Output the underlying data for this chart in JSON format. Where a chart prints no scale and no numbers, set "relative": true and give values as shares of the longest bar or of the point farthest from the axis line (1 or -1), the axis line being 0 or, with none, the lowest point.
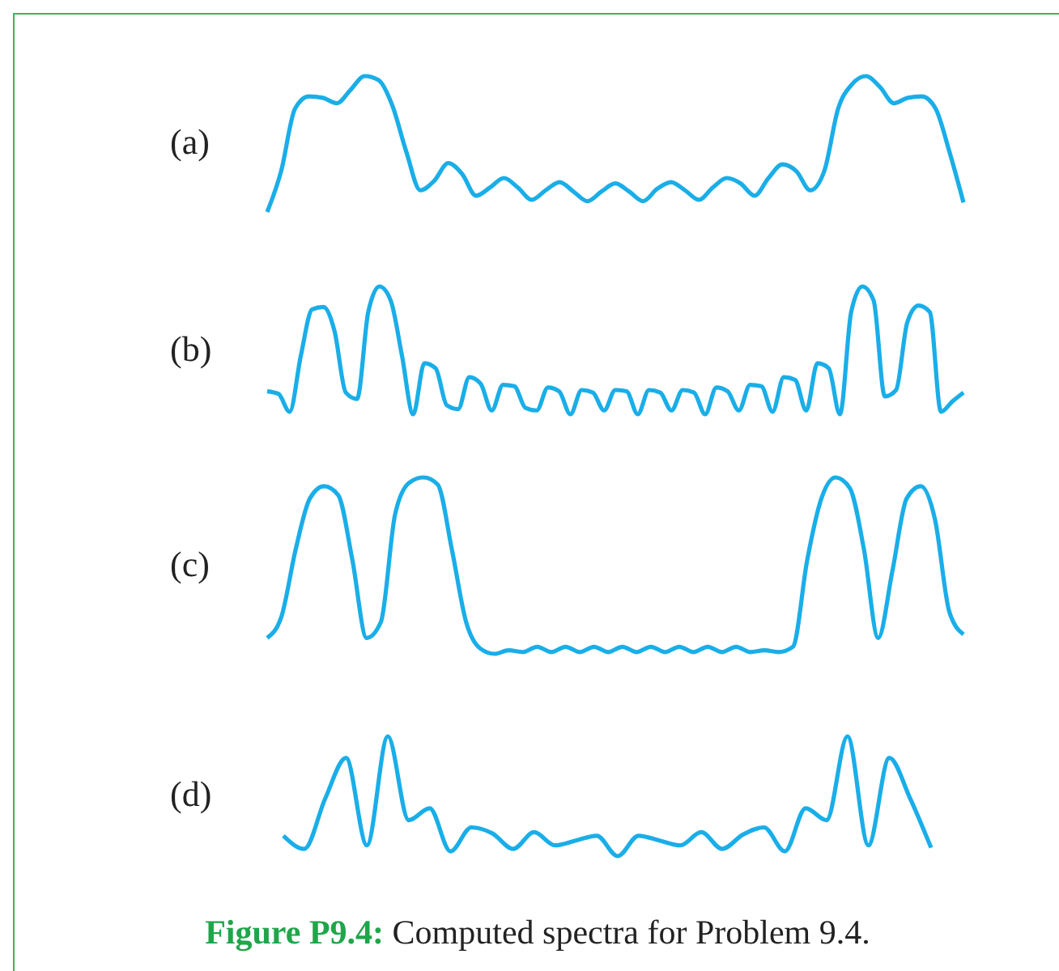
{
  "chart_data": [
    {
      "type": "line",
      "title": "(a)",
      "relative": true,
      "color": "#1aaee8",
      "categories": [
        null,
        null,
        null,
        null,
        null,
        null,
        null,
        null,
        null,
        null,
        null,
        null,
        null,
        null,
        null,
        null,
        null,
        null,
        null,
        null,
        null,
        null,
        null,
        null,
        null,
        null,
        null,
        null,
        null,
        null,
        null,
        null,
        null,
        null,
        null,
        null,
        null,
        null,
        null,
        null,
        null,
        null,
        null,
        null,
        null,
        null,
        null,
        null,
        null,
        null,
        null
      ],
      "values": [
        0,
        0.3,
        0.76,
        0.85,
        0.84,
        0.8,
        0.9,
        1,
        0.97,
        0.78,
        0.44,
        0.16,
        0.23,
        0.36,
        0.28,
        0.12,
        0.18,
        0.25,
        0.18,
        0.09,
        0.16,
        0.22,
        0.15,
        0.08,
        0.15,
        0.21,
        0.15,
        0.08,
        0.17,
        0.22,
        0.16,
        0.09,
        0.18,
        0.25,
        0.21,
        0.12,
        0.25,
        0.35,
        0.3,
        0.16,
        0.3,
        0.76,
        0.94,
        1,
        0.92,
        0.8,
        0.84,
        0.85,
        0.76,
        0.44,
        0.07
      ]
    },
    {
      "type": "line",
      "title": "(b)",
      "relative": true,
      "color": "#1aaee8",
      "categories": [
        null,
        null,
        null,
        null,
        null,
        null,
        null,
        null,
        null,
        null,
        null,
        null,
        null,
        null,
        null,
        null,
        null,
        null,
        null,
        null,
        null,
        null,
        null,
        null,
        null,
        null,
        null,
        null,
        null,
        null,
        null,
        null,
        null,
        null,
        null,
        null,
        null,
        null,
        null,
        null,
        null,
        null,
        null,
        null,
        null,
        null,
        null,
        null,
        null,
        null,
        null,
        null,
        null,
        null,
        null,
        null,
        null,
        null,
        null,
        null,
        null,
        null,
        null
      ],
      "values": [
        0.18,
        0.16,
        0.02,
        0.46,
        0.82,
        0.84,
        0.65,
        0.17,
        0.12,
        0.8,
        1,
        0.89,
        0.46,
        0,
        0.4,
        0.36,
        0.07,
        0.04,
        0.29,
        0.24,
        0.03,
        0.23,
        0.22,
        0.05,
        0.03,
        0.21,
        0.18,
        0,
        0.19,
        0.17,
        0.03,
        0.19,
        0.18,
        0,
        0.19,
        0.17,
        0.03,
        0.19,
        0.17,
        0,
        0.21,
        0.18,
        0.03,
        0.23,
        0.22,
        0.02,
        0.29,
        0.27,
        0.03,
        0.4,
        0.36,
        0,
        0.8,
        1,
        0.89,
        0.14,
        0.19,
        0.72,
        0.85,
        0.8,
        0.02,
        0.1,
        0.17
      ]
    },
    {
      "type": "line",
      "title": "(c)",
      "relative": true,
      "color": "#1aaee8",
      "categories": [
        null,
        null,
        null,
        null,
        null,
        null,
        null,
        null,
        null,
        null,
        null,
        null,
        null,
        null,
        null,
        null,
        null,
        null,
        null,
        null,
        null,
        null,
        null,
        null,
        null,
        null,
        null,
        null,
        null,
        null,
        null,
        null,
        null,
        null,
        null,
        null,
        null,
        null,
        null,
        null,
        null,
        null,
        null,
        null,
        null,
        null,
        null,
        null,
        null,
        null
      ],
      "values": [
        0.09,
        0.21,
        0.59,
        0.88,
        0.95,
        0.9,
        0.53,
        0.09,
        0.18,
        0.79,
        0.97,
        1,
        0.96,
        0.59,
        0.18,
        0.03,
        0,
        0.02,
        0.01,
        0.04,
        0.01,
        0.04,
        0.01,
        0.04,
        0.01,
        0.04,
        0.01,
        0.04,
        0.01,
        0.04,
        0.01,
        0.04,
        0.01,
        0.04,
        0.01,
        0.02,
        0.01,
        0.04,
        0.53,
        0.88,
        1,
        0.94,
        0.59,
        0.09,
        0.47,
        0.88,
        0.95,
        0.76,
        0.24,
        0.11
      ]
    },
    {
      "type": "line",
      "title": "(d)",
      "relative": true,
      "color": "#1aaee8",
      "categories": [
        null,
        null,
        null,
        null,
        null,
        null,
        null,
        null,
        null,
        null,
        null,
        null,
        null,
        null,
        null,
        null,
        null,
        null,
        null,
        null,
        null,
        null,
        null,
        null,
        null,
        null,
        null,
        null,
        null,
        null,
        null,
        null
      ],
      "values": [
        0.17,
        0.06,
        0.48,
        0.82,
        0.09,
        1,
        0.3,
        0.4,
        0.04,
        0.24,
        0.19,
        0.06,
        0.2,
        0.09,
        0.13,
        0.17,
        0,
        0.17,
        0.13,
        0.09,
        0.2,
        0.06,
        0.18,
        0.24,
        0.04,
        0.4,
        0.3,
        1,
        0.09,
        0.82,
        0.48,
        0.07
      ],
      "annotations": [
        "Figure P9.4: Computed spectra for Problem 9.4."
      ]
    }
  ]
}
